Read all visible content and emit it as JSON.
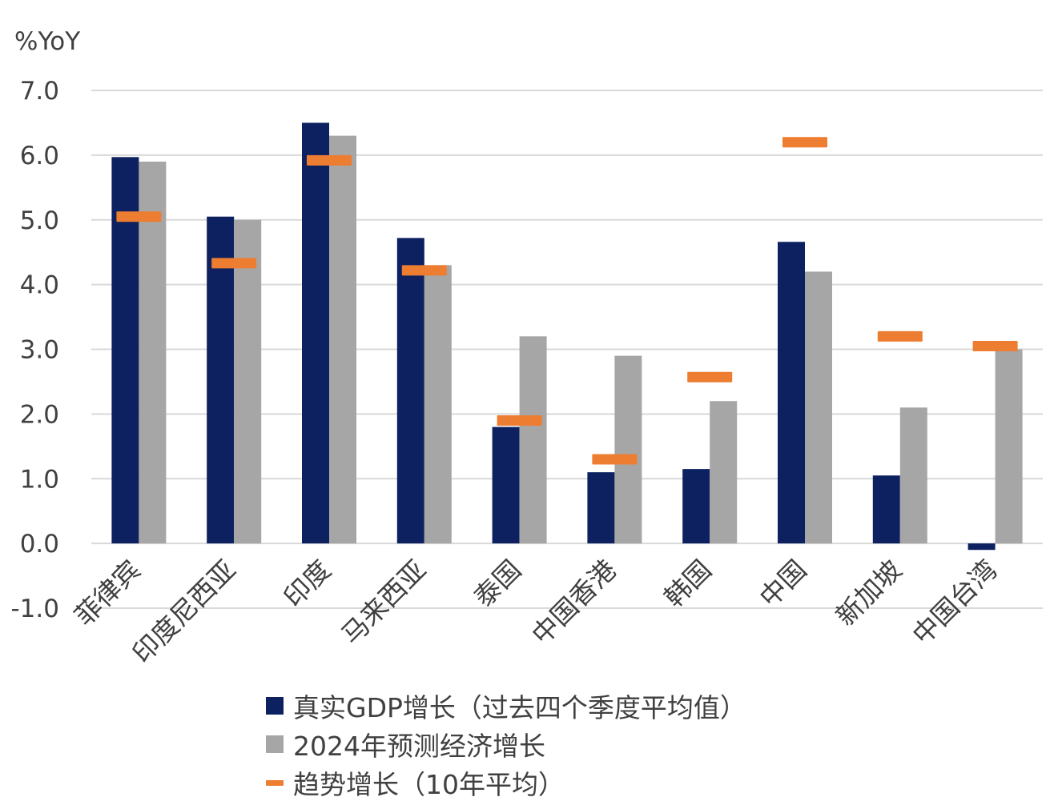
{
  "chart_data": {
    "type": "bar",
    "unit_label": "%YoY",
    "ylim": [
      -1.0,
      7.0
    ],
    "yticks": [
      "7.0",
      "6.0",
      "5.0",
      "4.0",
      "3.0",
      "2.0",
      "1.0",
      "0.0",
      "-1.0"
    ],
    "grid": true,
    "legend_position": "bottom",
    "categories": [
      "菲律宾",
      "印度尼西亚",
      "印度",
      "马来西亚",
      "泰国",
      "中国香港",
      "韩国",
      "中国",
      "新加坡",
      "中国台湾"
    ],
    "series": [
      {
        "name": "真实GDP增长（过去四个季度平均值）",
        "type": "bar",
        "color": "#0d2160",
        "values": [
          5.97,
          5.05,
          6.5,
          4.72,
          1.8,
          1.1,
          1.15,
          4.66,
          1.05,
          -0.1
        ]
      },
      {
        "name": "2024年预测经济增长",
        "type": "bar",
        "color": "#a6a6a6",
        "values": [
          5.9,
          5.0,
          6.3,
          4.3,
          3.2,
          2.9,
          2.2,
          4.2,
          2.1,
          3.0
        ]
      },
      {
        "name": "趋势增长（10年平均）",
        "type": "marker",
        "color": "#ed7d31",
        "values": [
          5.05,
          4.33,
          5.92,
          4.22,
          1.9,
          1.3,
          2.57,
          6.2,
          3.2,
          3.05
        ]
      }
    ]
  }
}
